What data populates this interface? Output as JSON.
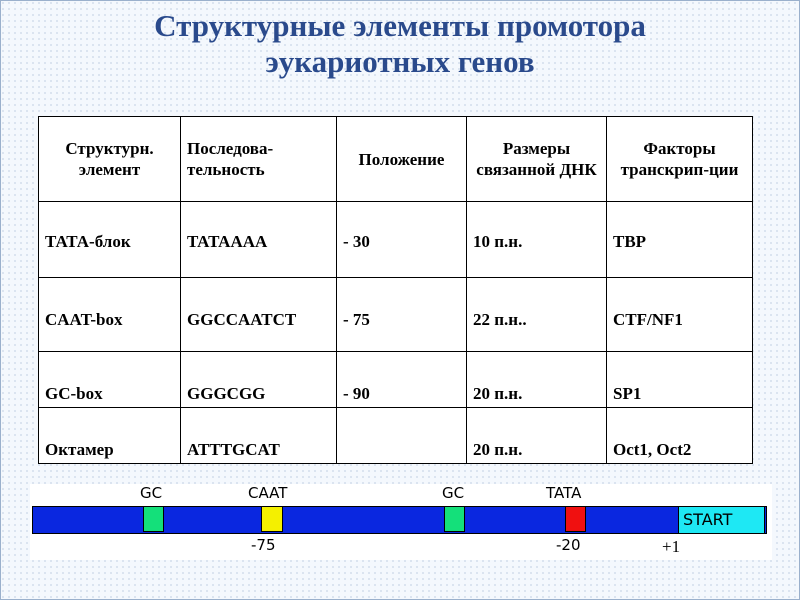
{
  "title": "Структурные элементы промотора эукариотных генов",
  "table": {
    "headers": [
      "Структурн. элемент",
      "Последова-тельность",
      "Положение",
      "Размеры связанной ДНК",
      "Факторы транскрип-ции"
    ],
    "rows": [
      [
        "ТАТА-блок",
        "TATAAAA",
        "- 30",
        "10 п.н.",
        "TBP"
      ],
      [
        "CAAT-box",
        "GGCCAATCT",
        "- 75",
        "22 п.н..",
        "CTF/NF1"
      ],
      [
        "GC-box",
        "GGGCGG",
        "- 90",
        "20 п.н.",
        "SP1"
      ],
      [
        "Октамер",
        "ATTTGCAT",
        "",
        "20 п.н.",
        "Oct1, Oct2"
      ]
    ]
  },
  "diagram": {
    "labels_top": [
      "GC",
      "CAAT",
      "GC",
      "TATA"
    ],
    "labels_bottom": [
      "-75",
      "-20",
      "+1"
    ],
    "start_label": "START",
    "colors": {
      "bar": "#0a27e0",
      "gc": "#14e07a",
      "caat": "#f4f000",
      "tata": "#f01010",
      "start": "#1ee8f4"
    }
  }
}
